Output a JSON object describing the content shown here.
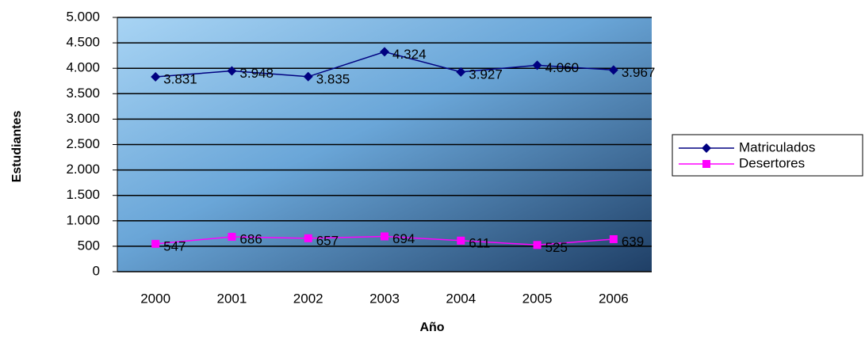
{
  "chart_data": {
    "type": "line",
    "categories": [
      "2000",
      "2001",
      "2002",
      "2003",
      "2004",
      "2005",
      "2006"
    ],
    "series": [
      {
        "name": "Matriculados",
        "color": "#000080",
        "marker": "diamond",
        "values": [
          3831,
          3948,
          3835,
          4324,
          3927,
          4060,
          3967
        ],
        "value_labels": [
          "3.831",
          "3.948",
          "3.835",
          "4.324",
          "3.927",
          "4.060",
          "3.967"
        ]
      },
      {
        "name": "Desertores",
        "color": "#ff00ff",
        "marker": "square",
        "values": [
          547,
          686,
          657,
          694,
          611,
          525,
          639
        ]
      }
    ],
    "ylim": [
      0,
      5000
    ],
    "yticks": [
      0,
      500,
      {
        "value": 1000,
        "label": "1.000"
      },
      {
        "value": 1500,
        "label": "1.500"
      },
      {
        "value": 2000,
        "label": "2.000"
      },
      {
        "value": 2500,
        "label": "2.500"
      },
      {
        "value": 3000,
        "label": "3.000"
      },
      {
        "value": 3500,
        "label": "3.500"
      },
      {
        "value": 4000,
        "label": "4.000"
      },
      {
        "value": 4500,
        "label": "4.500"
      },
      {
        "value": 5000,
        "label": "5.000"
      }
    ],
    "grid": true,
    "legend": "right",
    "xlabel": "Año",
    "ylabel": "Estudiantes"
  }
}
